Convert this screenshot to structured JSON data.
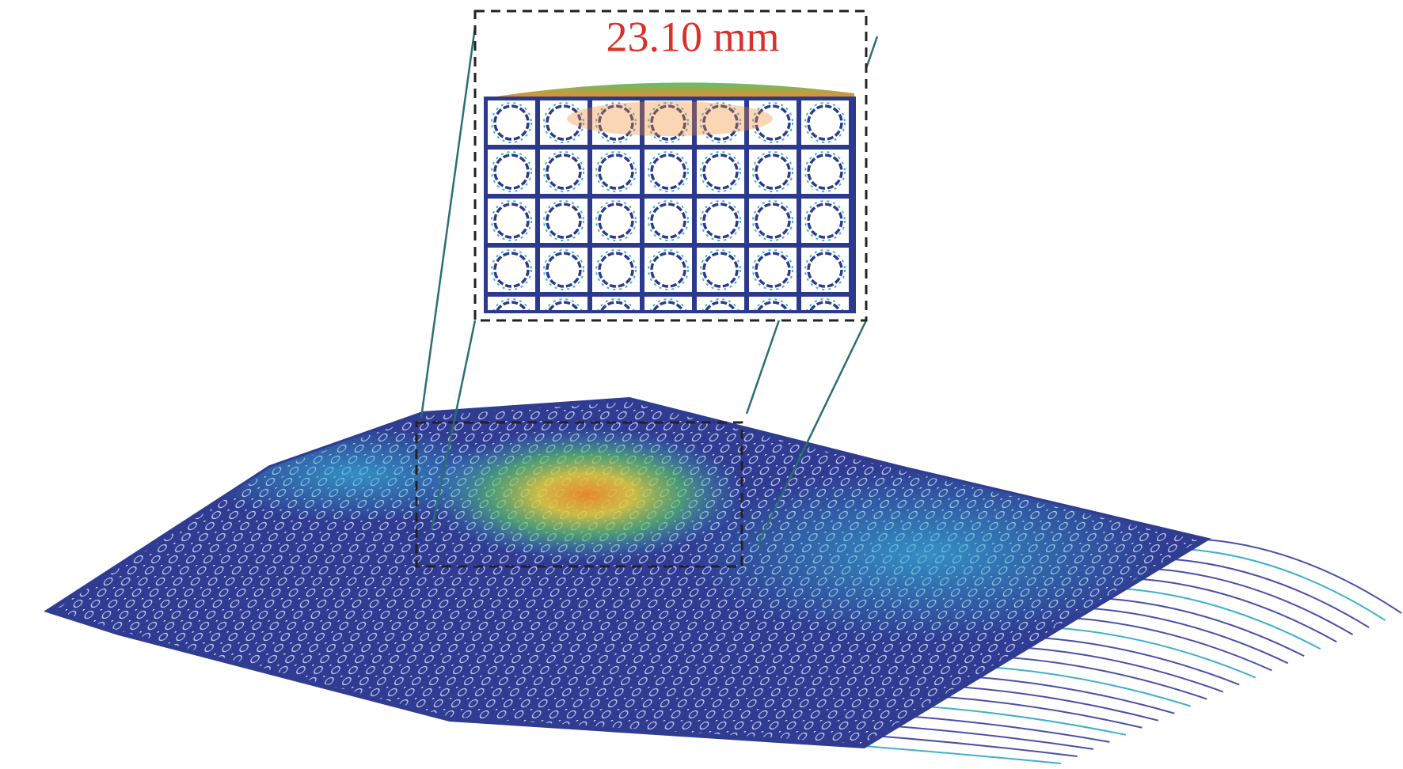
{
  "inset": {
    "label": "23.10 mm"
  }
}
